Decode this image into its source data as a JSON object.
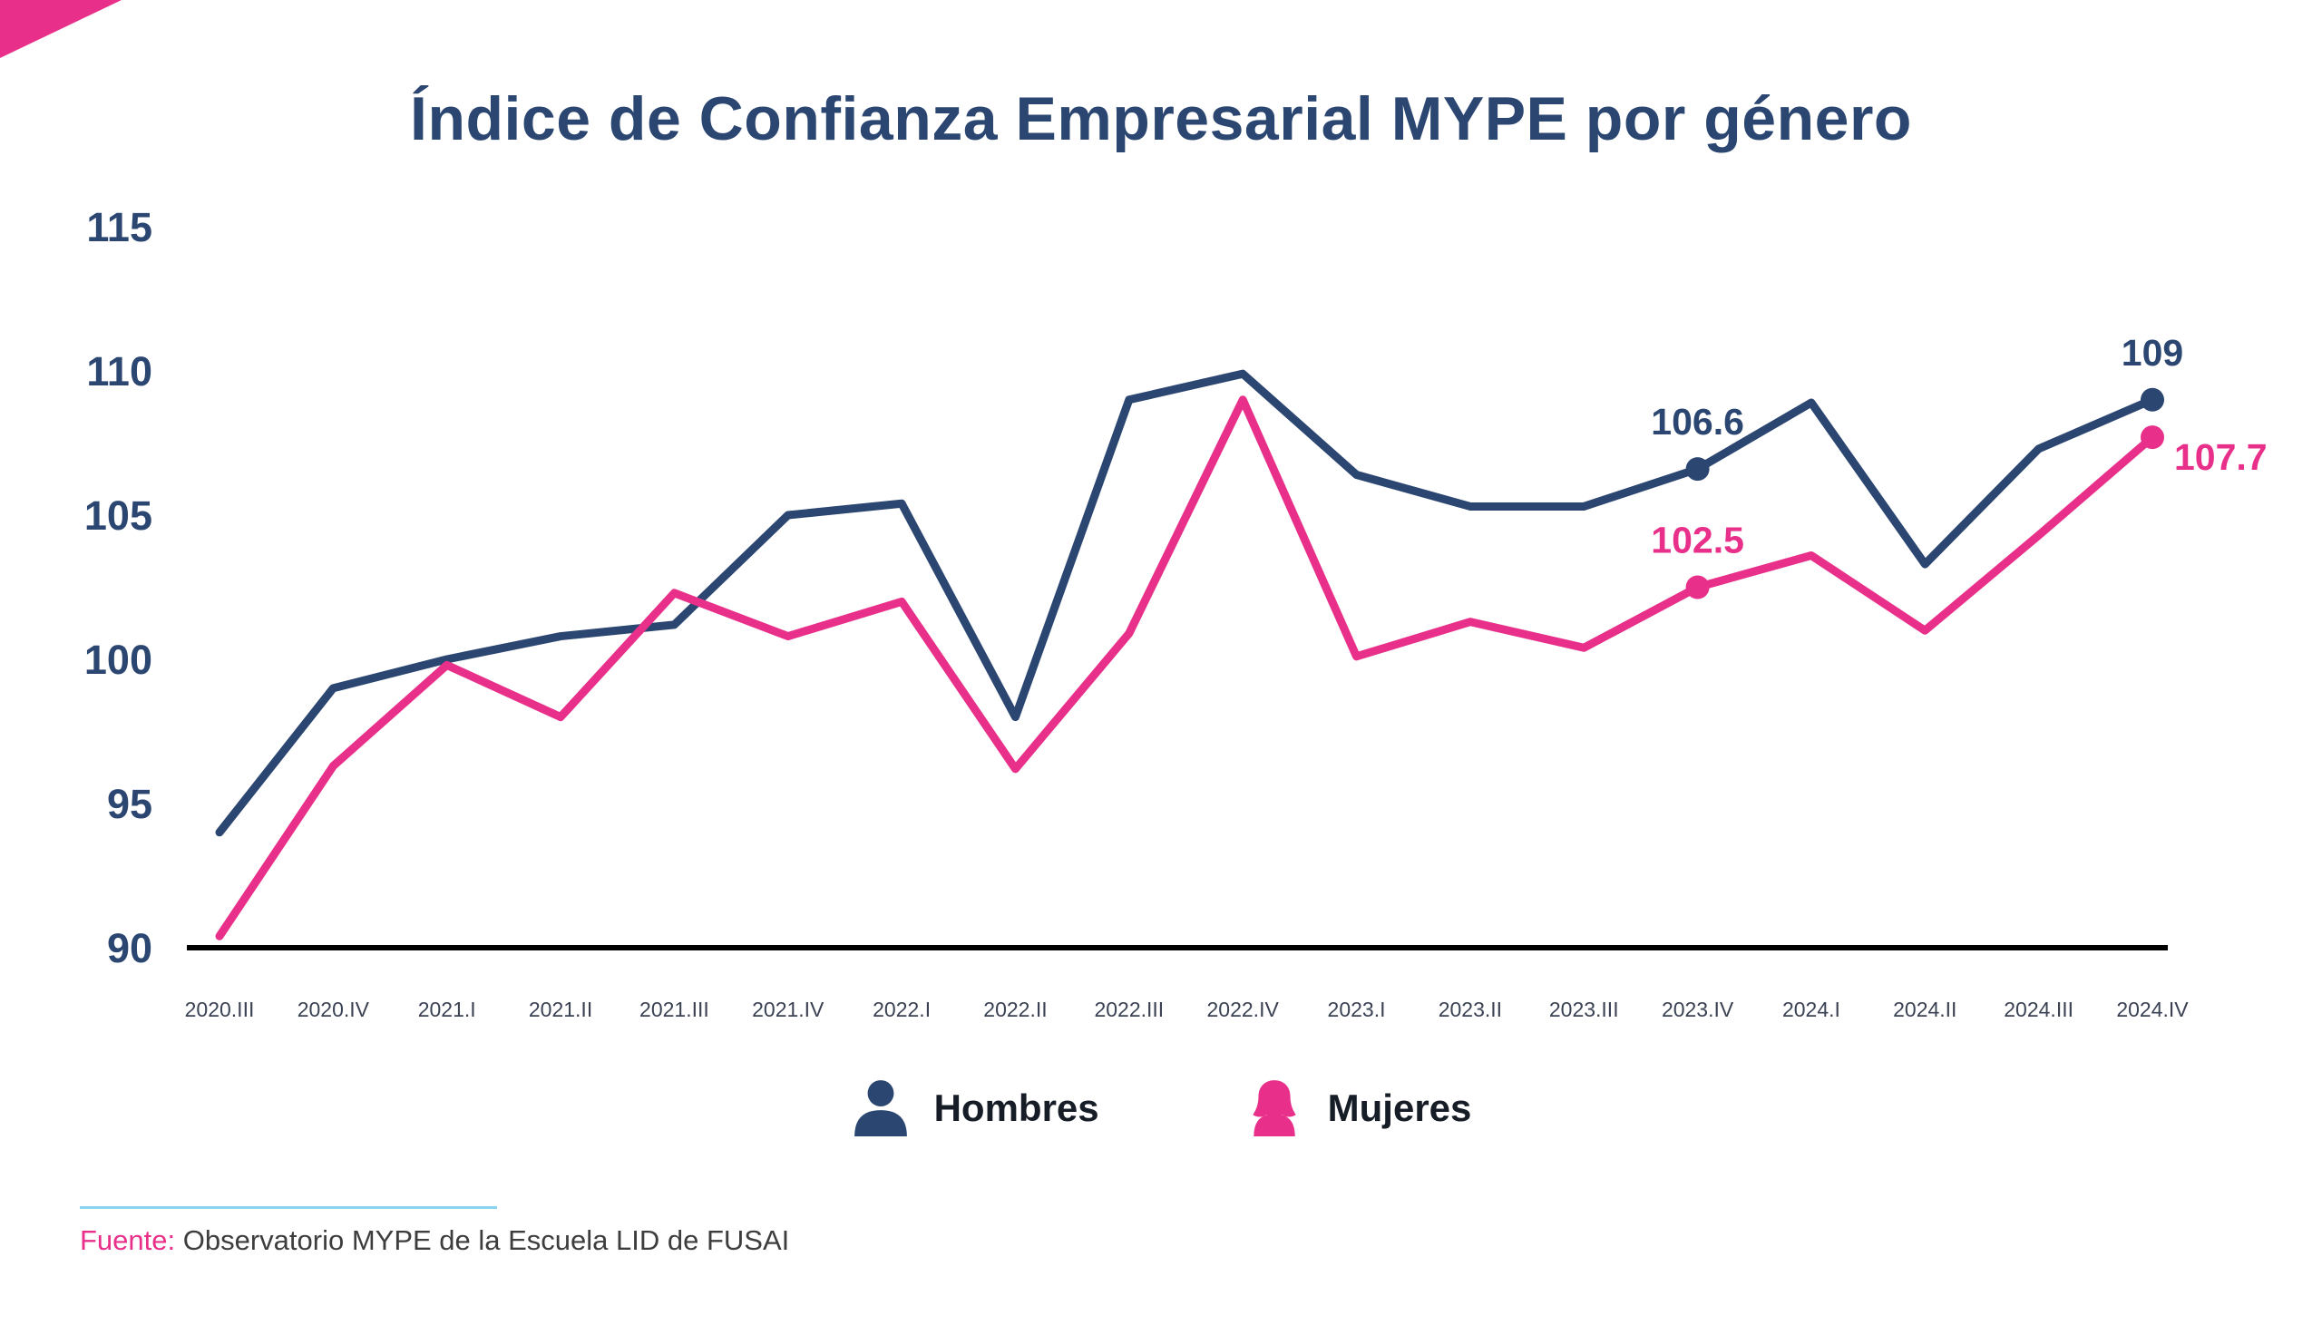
{
  "chart_data": {
    "type": "line",
    "title": "Índice de Confianza Empresarial MYPE por género",
    "categories": [
      "2020.III",
      "2020.IV",
      "2021.I",
      "2021.II",
      "2021.III",
      "2021.IV",
      "2022.I",
      "2022.II",
      "2022.III",
      "2022.IV",
      "2023.I",
      "2023.II",
      "2023.III",
      "2023.IV",
      "2024.I",
      "2024.II",
      "2024.III",
      "2024.IV"
    ],
    "series": [
      {
        "name": "Hombres",
        "color": "#2B4671",
        "values": [
          94,
          99,
          100,
          100.8,
          101.2,
          105,
          105.4,
          98,
          109,
          109.9,
          106.4,
          105.3,
          105.3,
          106.6,
          108.9,
          103.3,
          107.3,
          109
        ]
      },
      {
        "name": "Mujeres",
        "color": "#E8308A",
        "values": [
          90.4,
          96.3,
          99.8,
          98,
          102.3,
          100.8,
          102,
          96.2,
          100.9,
          109,
          100.1,
          101.3,
          100.4,
          102.5,
          103.6,
          101,
          104.3,
          107.7
        ]
      }
    ],
    "annotations": [
      {
        "series": 0,
        "index": 13,
        "text": "106.6",
        "position": "above"
      },
      {
        "series": 0,
        "index": 17,
        "text": "109",
        "position": "above"
      },
      {
        "series": 1,
        "index": 13,
        "text": "102.5",
        "position": "above"
      },
      {
        "series": 1,
        "index": 17,
        "text": "107.7",
        "position": "right"
      }
    ],
    "y_ticks": [
      90,
      95,
      100,
      105,
      110,
      115
    ],
    "ylim": [
      90,
      115
    ],
    "grid": false,
    "legend_position": "bottom"
  },
  "legend": {
    "items": [
      {
        "label": "Hombres",
        "icon": "male-person-icon",
        "color": "#2B4671"
      },
      {
        "label": "Mujeres",
        "icon": "female-person-icon",
        "color": "#E8308A"
      }
    ]
  },
  "footer": {
    "source_label": "Fuente:",
    "source_text": " Observatorio MYPE de la Escuela LID de FUSAI"
  },
  "colors": {
    "title": "#2B4671",
    "axis": "#000000",
    "hombres": "#2B4671",
    "mujeres": "#E8308A",
    "corner_accent": "#E8308A",
    "footer_rule": "#8AD4F0"
  }
}
